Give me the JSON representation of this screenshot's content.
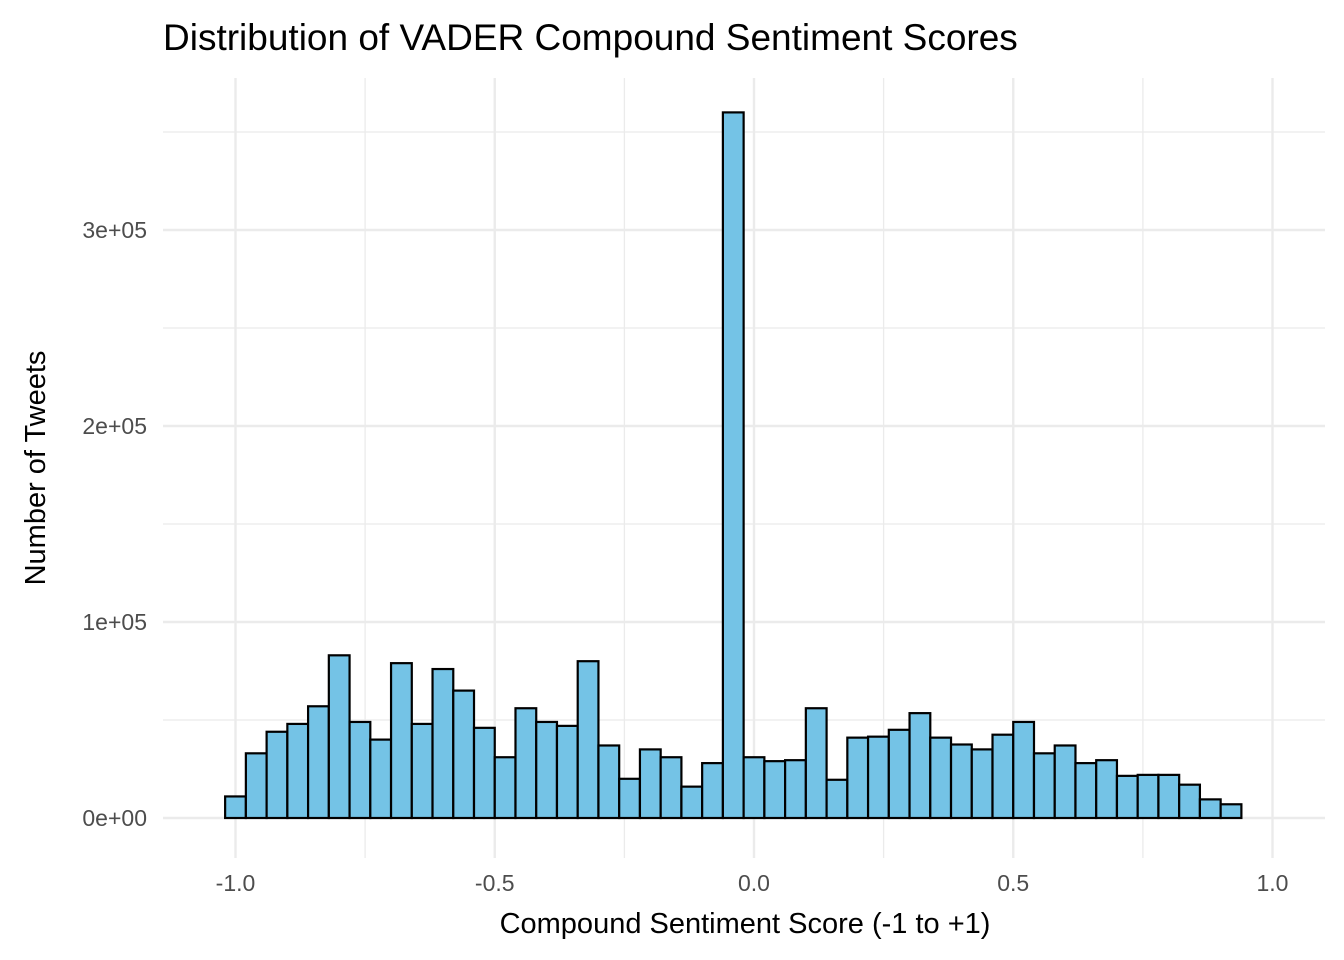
{
  "chart_data": {
    "type": "bar",
    "title": "Distribution of VADER Compound Sentiment Scores",
    "xlabel": "Compound Sentiment Score (-1 to +1)",
    "ylabel": "Number of Tweets",
    "xlim": [
      -1.0,
      1.0
    ],
    "ylim": [
      0,
      360000
    ],
    "x_ticks": [
      -1.0,
      -0.5,
      0.0,
      0.5,
      1.0
    ],
    "x_tick_labels": [
      "-1.0",
      "-0.5",
      "0.0",
      "0.5",
      "1.0"
    ],
    "y_ticks": [
      0,
      100000,
      200000,
      300000
    ],
    "y_tick_labels": [
      "0e+00",
      "1e+05",
      "2e+05",
      "3e+05"
    ],
    "bin_width": 0.04,
    "bin_centers": [
      -1.04,
      -1.0,
      -0.96,
      -0.92,
      -0.88,
      -0.84,
      -0.8,
      -0.76,
      -0.72,
      -0.68,
      -0.64,
      -0.6,
      -0.56,
      -0.52,
      -0.48,
      -0.44,
      -0.4,
      -0.36,
      -0.32,
      -0.28,
      -0.24,
      -0.2,
      -0.16,
      -0.12,
      -0.08,
      -0.04,
      0.0,
      0.04,
      0.08,
      0.12,
      0.16,
      0.2,
      0.24,
      0.28,
      0.32,
      0.36,
      0.4,
      0.44,
      0.48,
      0.52,
      0.56,
      0.6,
      0.64,
      0.68,
      0.72,
      0.76,
      0.8,
      0.84,
      0.88,
      0.92,
      0.96,
      1.0
    ],
    "values": [
      0,
      11000,
      33000,
      44000,
      48000,
      57000,
      83000,
      49000,
      40000,
      79000,
      48000,
      76000,
      65000,
      46000,
      31000,
      56000,
      49000,
      47000,
      80000,
      37000,
      20000,
      35000,
      31000,
      16000,
      28000,
      360000,
      31000,
      29000,
      29500,
      56000,
      19500,
      41000,
      41500,
      45000,
      53500,
      41000,
      37500,
      35000,
      42500,
      49000,
      33000,
      37000,
      28000,
      29500,
      21500,
      22000,
      22000,
      17000,
      9500,
      7000,
      0,
      0
    ],
    "fill_color": "#74c3e6",
    "outline_color": "#000000",
    "grid": true,
    "legend": "none"
  }
}
